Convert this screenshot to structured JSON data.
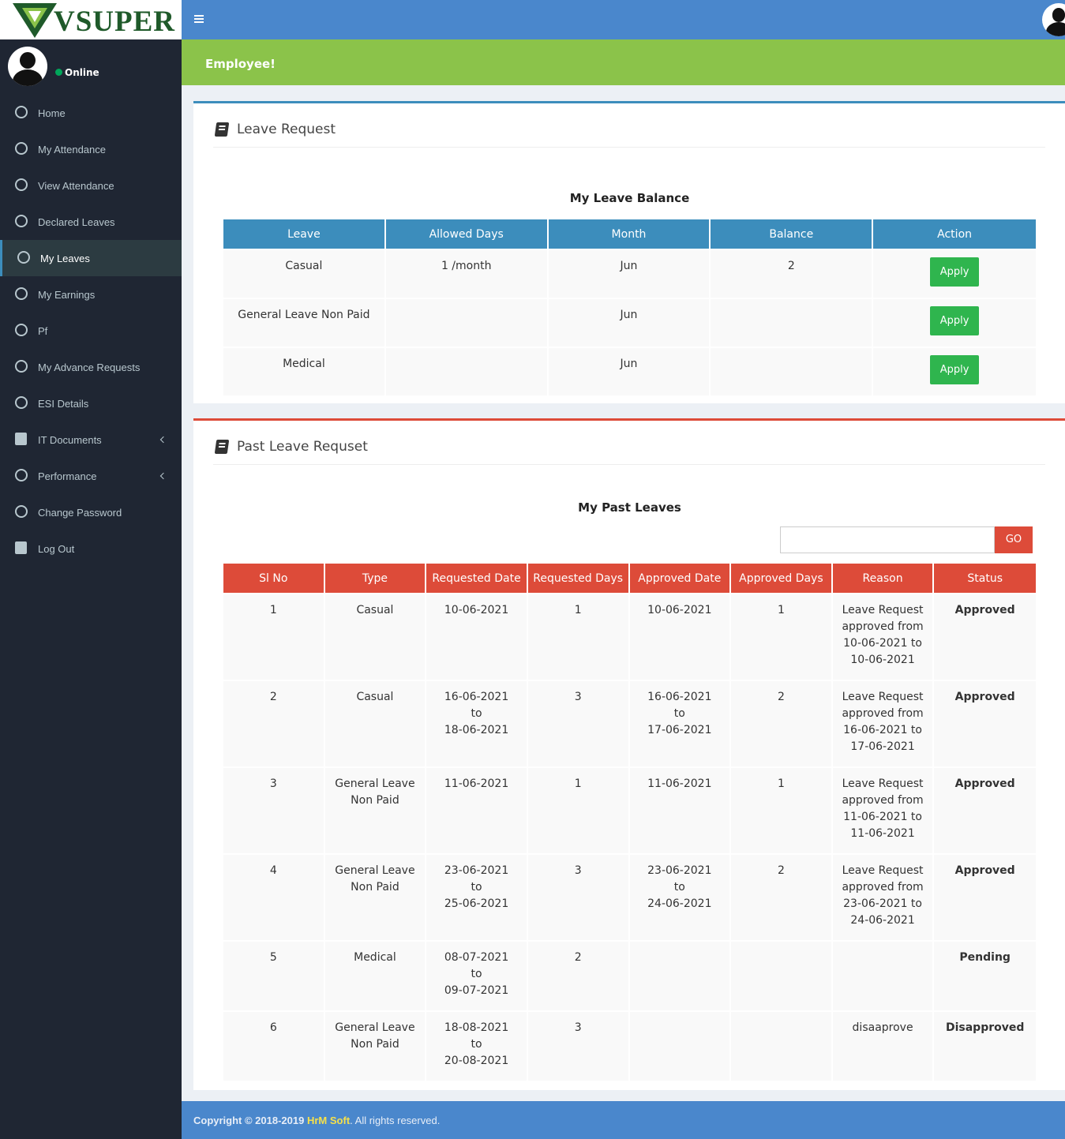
{
  "brand": "VSUPER",
  "user": {
    "status": "Online"
  },
  "menu": [
    {
      "label": "Home",
      "icon": "home"
    },
    {
      "label": "My Attendance",
      "icon": "circle"
    },
    {
      "label": "View Attendance",
      "icon": "circle"
    },
    {
      "label": "Declared Leaves",
      "icon": "circle"
    },
    {
      "label": "My Leaves",
      "icon": "circle",
      "active": true
    },
    {
      "label": "My Earnings",
      "icon": "circle"
    },
    {
      "label": "Pf",
      "icon": "circle"
    },
    {
      "label": "My Advance Requests",
      "icon": "circle"
    },
    {
      "label": "ESI Details",
      "icon": "circle"
    },
    {
      "label": "IT Documents",
      "icon": "file",
      "submenu": true
    },
    {
      "label": "Performance",
      "icon": "dashboard",
      "submenu": true
    },
    {
      "label": "Change Password",
      "icon": "circle"
    },
    {
      "label": "Log Out",
      "icon": "logout"
    }
  ],
  "banner": "Employee!",
  "leave_request": {
    "title": "Leave Request",
    "table_title": "My Leave Balance",
    "columns": [
      "Leave",
      "Allowed Days",
      "Month",
      "Balance",
      "Action"
    ],
    "rows": [
      [
        "Casual",
        "1 /month",
        "Jun",
        "2",
        "Apply"
      ],
      [
        "General Leave Non Paid",
        null,
        "Jun",
        null,
        "Apply"
      ],
      [
        "Medical",
        null,
        "Jun",
        null,
        "Apply"
      ]
    ]
  },
  "past_leaves": {
    "title": "Past Leave Requset",
    "table_title": "My Past Leaves",
    "search_button": "GO",
    "columns": [
      "Sl No",
      "Type",
      "Requested Date",
      "Requested Days",
      "Approved Date",
      "Approved Days",
      "Reason",
      "Status"
    ],
    "rows": [
      [
        "1",
        "Casual",
        "10-06-2021",
        "1",
        "10-06-2021",
        "1",
        "Leave Request approved from 10-06-2021 to 10-06-2021",
        "Approved"
      ],
      [
        "2",
        "Casual",
        "16-06-2021\nto\n18-06-2021",
        "3",
        "16-06-2021\nto\n17-06-2021",
        "2",
        "Leave Request approved from 16-06-2021 to 17-06-2021",
        "Approved"
      ],
      [
        "3",
        "General Leave Non Paid",
        "11-06-2021",
        "1",
        "11-06-2021",
        "1",
        "Leave Request approved from 11-06-2021 to 11-06-2021",
        "Approved"
      ],
      [
        "4",
        "General Leave Non Paid",
        "23-06-2021\nto\n25-06-2021",
        "3",
        "23-06-2021\nto\n24-06-2021",
        "2",
        "Leave Request approved from 23-06-2021 to 24-06-2021",
        "Approved"
      ],
      [
        "5",
        "Medical",
        "08-07-2021\nto\n09-07-2021",
        "2",
        null,
        null,
        null,
        "Pending"
      ],
      [
        "6",
        "General Leave Non Paid",
        "18-08-2021\nto\n20-08-2021",
        "3",
        null,
        null,
        "disaaprove",
        "Disapproved"
      ]
    ]
  },
  "footer": {
    "copyright": "Copyright © 2018-2019",
    "company": "HrM Soft",
    "rights": ". All rights reserved."
  }
}
